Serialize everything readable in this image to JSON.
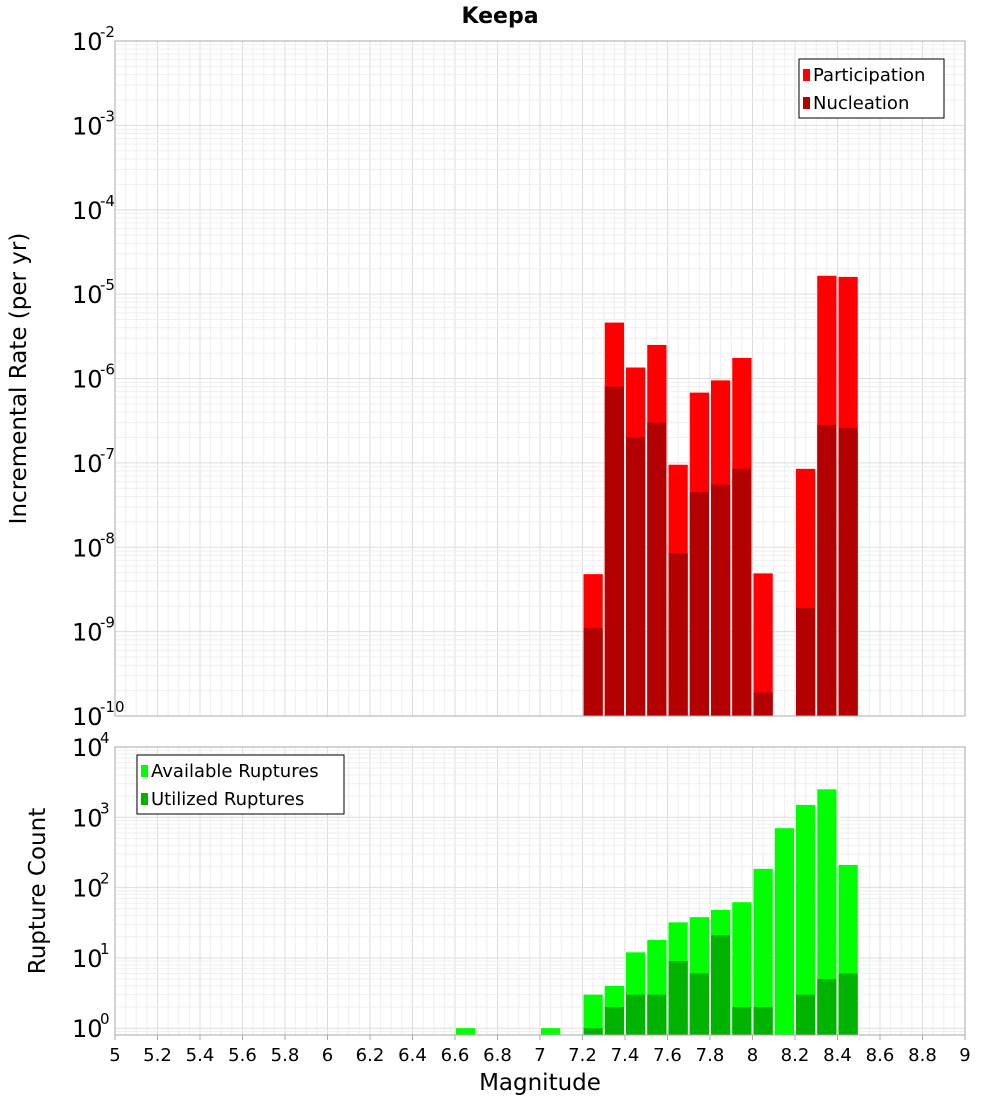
{
  "chart_data": [
    {
      "type": "bar",
      "panel": "top",
      "title": "Keepa",
      "ylabel": "Incremental Rate (per yr)",
      "xlabel": "",
      "y_scale": "log",
      "ylim": [
        1e-10,
        0.01
      ],
      "xlim": [
        5,
        9
      ],
      "bin_width": 0.1,
      "y_ticks": [
        {
          "base": "10",
          "exp": "-10",
          "value": 1e-10
        },
        {
          "base": "10",
          "exp": "-9",
          "value": 1e-09
        },
        {
          "base": "10",
          "exp": "-8",
          "value": 1e-08
        },
        {
          "base": "10",
          "exp": "-7",
          "value": 1e-07
        },
        {
          "base": "10",
          "exp": "-6",
          "value": 1e-06
        },
        {
          "base": "10",
          "exp": "-5",
          "value": 1e-05
        },
        {
          "base": "10",
          "exp": "-4",
          "value": 0.0001
        },
        {
          "base": "10",
          "exp": "-3",
          "value": 0.001
        },
        {
          "base": "10",
          "exp": "-2",
          "value": 0.01
        }
      ],
      "legend_position": "top-right",
      "grid": true,
      "series": [
        {
          "name": "Participation",
          "color": "#ff0000",
          "points": [
            {
              "x": 7.25,
              "y": 4.8e-09
            },
            {
              "x": 7.35,
              "y": 4.6e-06
            },
            {
              "x": 7.45,
              "y": 1.35e-06
            },
            {
              "x": 7.55,
              "y": 2.5e-06
            },
            {
              "x": 7.65,
              "y": 9.5e-08
            },
            {
              "x": 7.75,
              "y": 6.8e-07
            },
            {
              "x": 7.85,
              "y": 9.5e-07
            },
            {
              "x": 7.95,
              "y": 1.75e-06
            },
            {
              "x": 8.05,
              "y": 4.9e-09
            },
            {
              "x": 8.25,
              "y": 8.5e-08
            },
            {
              "x": 8.35,
              "y": 1.65e-05
            },
            {
              "x": 8.45,
              "y": 1.6e-05
            }
          ]
        },
        {
          "name": "Nucleation",
          "color": "#b30000",
          "points": [
            {
              "x": 7.25,
              "y": 1.1e-09
            },
            {
              "x": 7.35,
              "y": 8e-07
            },
            {
              "x": 7.45,
              "y": 2e-07
            },
            {
              "x": 7.55,
              "y": 3e-07
            },
            {
              "x": 7.65,
              "y": 8.5e-09
            },
            {
              "x": 7.75,
              "y": 4.5e-08
            },
            {
              "x": 7.85,
              "y": 5.5e-08
            },
            {
              "x": 7.95,
              "y": 8.5e-08
            },
            {
              "x": 8.05,
              "y": 1.9e-10
            },
            {
              "x": 8.25,
              "y": 1.9e-09
            },
            {
              "x": 8.35,
              "y": 2.8e-07
            },
            {
              "x": 8.45,
              "y": 2.6e-07
            }
          ]
        }
      ]
    },
    {
      "type": "bar",
      "panel": "bottom",
      "title": "",
      "ylabel": "Rupture Count",
      "xlabel": "Magnitude",
      "y_scale": "log",
      "ylim": [
        0.8,
        10000
      ],
      "xlim": [
        5,
        9
      ],
      "bin_width": 0.1,
      "x_ticks": [
        "5",
        "5.2",
        "5.4",
        "5.6",
        "5.8",
        "6",
        "6.2",
        "6.4",
        "6.6",
        "6.8",
        "7",
        "7.2",
        "7.4",
        "7.6",
        "7.8",
        "8",
        "8.2",
        "8.4",
        "8.6",
        "8.8",
        "9"
      ],
      "y_ticks": [
        {
          "base": "10",
          "exp": "0",
          "value": 1
        },
        {
          "base": "10",
          "exp": "1",
          "value": 10
        },
        {
          "base": "10",
          "exp": "2",
          "value": 100
        },
        {
          "base": "10",
          "exp": "3",
          "value": 1000
        },
        {
          "base": "10",
          "exp": "4",
          "value": 10000
        }
      ],
      "legend_position": "top-left",
      "grid": true,
      "series": [
        {
          "name": "Available Ruptures",
          "color": "#00ff00",
          "points": [
            {
              "x": 6.65,
              "y": 1
            },
            {
              "x": 7.05,
              "y": 1
            },
            {
              "x": 7.25,
              "y": 3
            },
            {
              "x": 7.35,
              "y": 4
            },
            {
              "x": 7.45,
              "y": 12
            },
            {
              "x": 7.55,
              "y": 18
            },
            {
              "x": 7.65,
              "y": 32
            },
            {
              "x": 7.75,
              "y": 38
            },
            {
              "x": 7.85,
              "y": 48
            },
            {
              "x": 7.95,
              "y": 62
            },
            {
              "x": 8.05,
              "y": 185
            },
            {
              "x": 8.15,
              "y": 700
            },
            {
              "x": 8.25,
              "y": 1500
            },
            {
              "x": 8.35,
              "y": 2500
            },
            {
              "x": 8.45,
              "y": 210
            }
          ]
        },
        {
          "name": "Utilized Ruptures",
          "color": "#00b300",
          "points": [
            {
              "x": 7.25,
              "y": 1
            },
            {
              "x": 7.35,
              "y": 2
            },
            {
              "x": 7.45,
              "y": 3
            },
            {
              "x": 7.55,
              "y": 3
            },
            {
              "x": 7.65,
              "y": 9
            },
            {
              "x": 7.75,
              "y": 6
            },
            {
              "x": 7.85,
              "y": 21
            },
            {
              "x": 7.95,
              "y": 2
            },
            {
              "x": 8.05,
              "y": 2
            },
            {
              "x": 8.25,
              "y": 3
            },
            {
              "x": 8.35,
              "y": 5
            },
            {
              "x": 8.45,
              "y": 6
            }
          ]
        }
      ]
    }
  ]
}
